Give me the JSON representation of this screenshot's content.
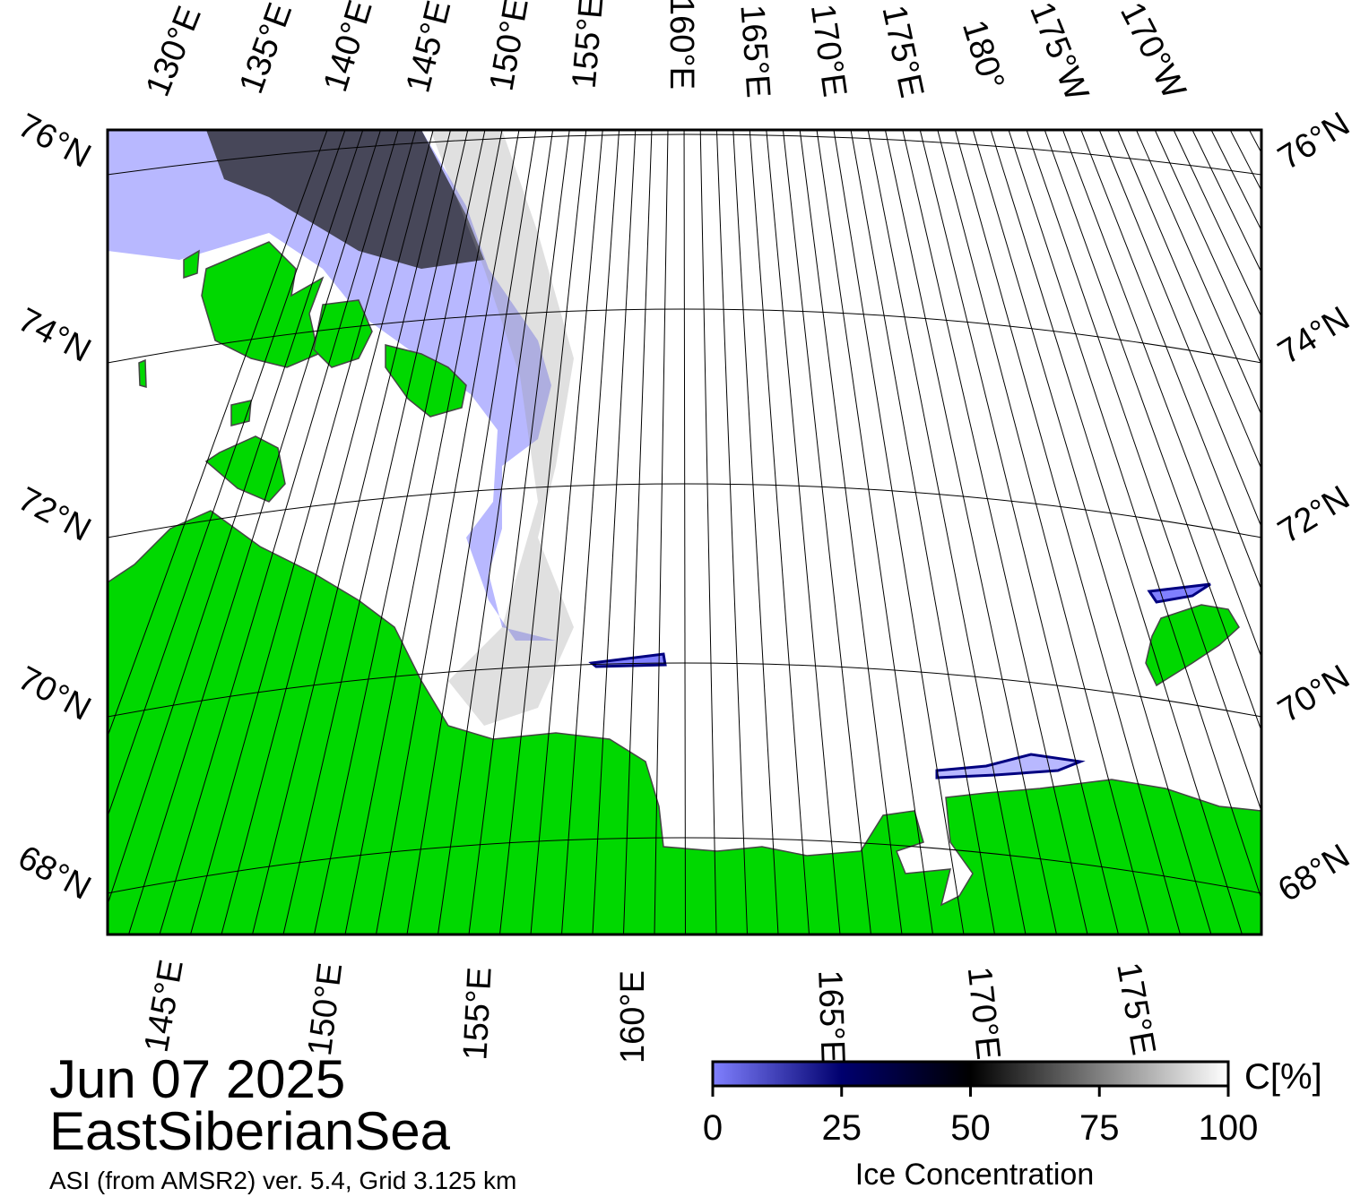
{
  "map": {
    "top_lon_labels": [
      "130°E",
      "135°E",
      "140°E",
      "145°E",
      "150°E",
      "155°E",
      "160°E",
      "165°E",
      "170°E",
      "175°E",
      "180°",
      "175°W",
      "170°W"
    ],
    "bottom_lon_labels": [
      "145°E",
      "150°E",
      "155°E",
      "160°E",
      "165°E",
      "170°E",
      "175°E"
    ],
    "left_lat_labels": [
      "76°N",
      "74°N",
      "72°N",
      "70°N",
      "68°N"
    ],
    "right_lat_labels": [
      "76°N",
      "74°N",
      "72°N",
      "70°N",
      "68°N"
    ]
  },
  "caption": {
    "date": "Jun 07 2025",
    "region": "EastSiberianSea",
    "source": "ASI (from AMSR2) ver. 5.4,  Grid 3.125 km"
  },
  "colorbar": {
    "range": [
      0,
      100
    ],
    "ticks": [
      0,
      25,
      50,
      75,
      100
    ],
    "unit": "C[%]",
    "title": "Ice Concentration"
  }
}
